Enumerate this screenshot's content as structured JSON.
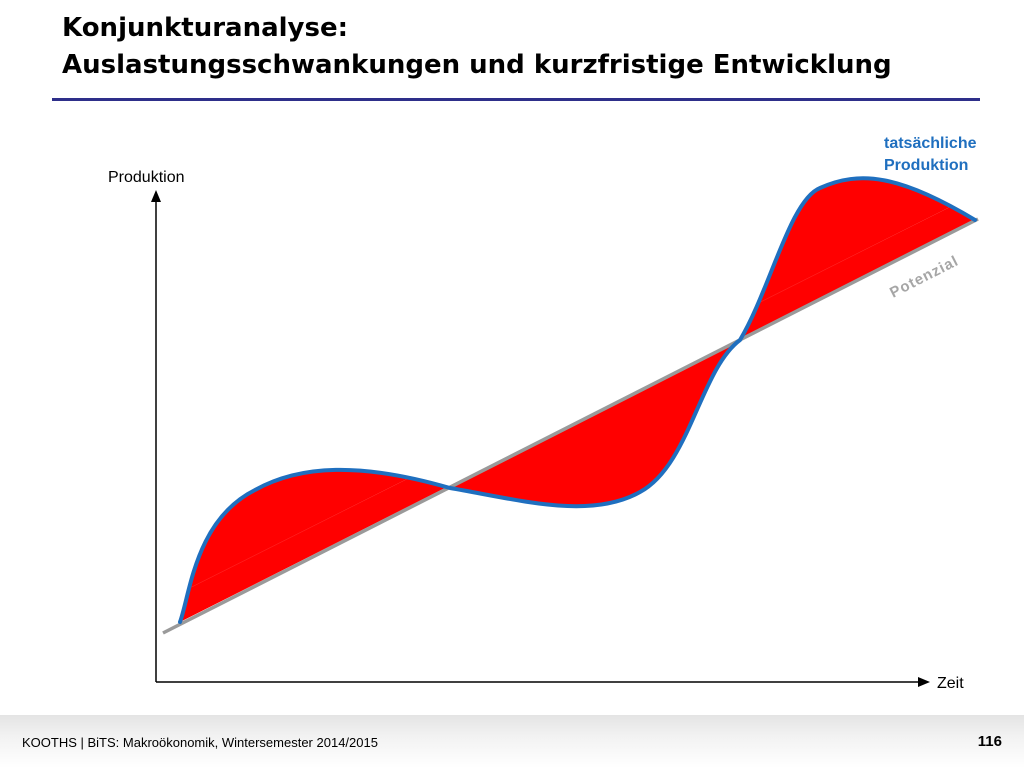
{
  "slide": {
    "title_line1": "Konjunkturanalyse:",
    "title_line2": "Auslastungsschwankungen und kurzfristige Entwicklung"
  },
  "diagram": {
    "y_axis_label": "Produktion",
    "x_axis_label": "Zeit",
    "actual_label_line1": "tatsächliche",
    "actual_label_line2": "Produktion",
    "potential_label": "Potenzial"
  },
  "colors": {
    "title_rule": "#2e2f8a",
    "actual_curve": "#1f6fbf",
    "potential_line": "#9a9a9a",
    "gap_fill": "#ff0000",
    "label_blue": "#1f6fbf"
  },
  "footer": {
    "text": "KOOTHS | BiTS: Makroökonomik, Wintersemester 2014/2015",
    "page_number": "116"
  }
}
